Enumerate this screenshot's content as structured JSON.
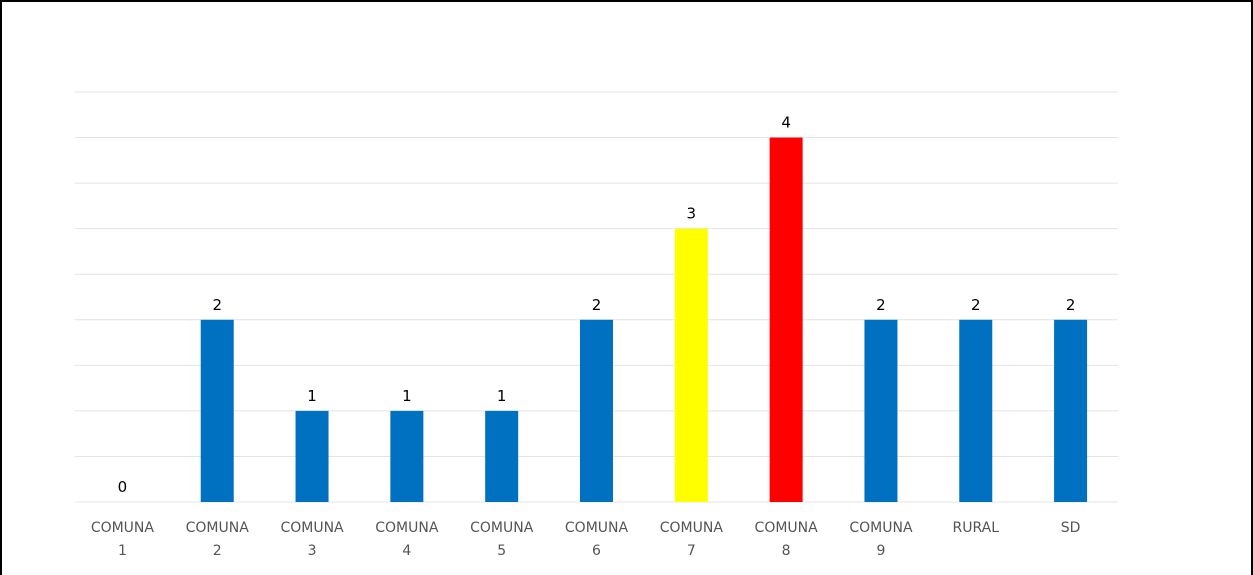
{
  "chart_data": {
    "type": "bar",
    "title": "",
    "xlabel": "",
    "ylabel": "",
    "ylim": [
      0,
      4.5
    ],
    "grid": true,
    "categories": [
      [
        "COMUNA",
        "1"
      ],
      [
        "COMUNA",
        "2"
      ],
      [
        "COMUNA",
        "3"
      ],
      [
        "COMUNA",
        "4"
      ],
      [
        "COMUNA",
        "5"
      ],
      [
        "COMUNA",
        "6"
      ],
      [
        "COMUNA",
        "7"
      ],
      [
        "COMUNA",
        "8"
      ],
      [
        "COMUNA",
        "9"
      ],
      [
        "RURAL"
      ],
      [
        "SD"
      ]
    ],
    "values": [
      0,
      2,
      1,
      1,
      1,
      2,
      3,
      4,
      2,
      2,
      2
    ],
    "colors": [
      "#0070c0",
      "#0070c0",
      "#0070c0",
      "#0070c0",
      "#0070c0",
      "#0070c0",
      "#ffff00",
      "#ff0000",
      "#0070c0",
      "#0070c0",
      "#0070c0"
    ],
    "data_labels": [
      "0",
      "2",
      "1",
      "1",
      "1",
      "2",
      "3",
      "4",
      "2",
      "2",
      "2"
    ]
  }
}
